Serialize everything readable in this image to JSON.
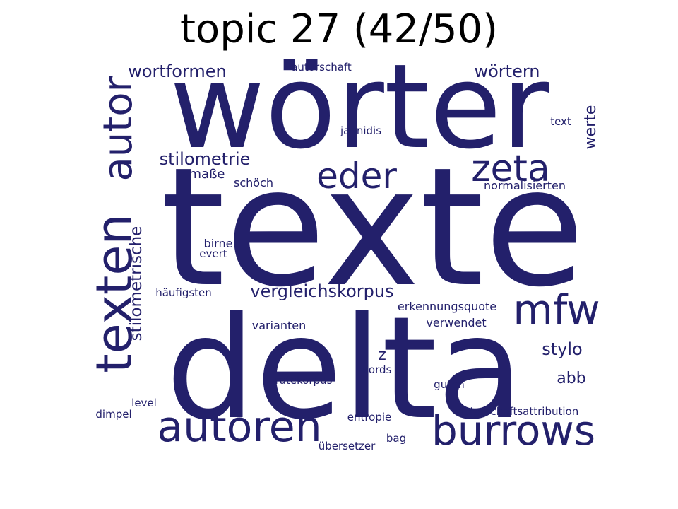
{
  "chart_data": {
    "type": "wordcloud",
    "title": "topic 27 (42/50)",
    "color": "#23206b",
    "words": [
      {
        "text": "texte",
        "weight": 1.0
      },
      {
        "text": "delta",
        "weight": 0.86
      },
      {
        "text": "wörter",
        "weight": 0.72
      },
      {
        "text": "texten",
        "weight": 0.45
      },
      {
        "text": "autoren",
        "weight": 0.33
      },
      {
        "text": "burrows",
        "weight": 0.31
      },
      {
        "text": "autor",
        "weight": 0.3
      },
      {
        "text": "mfw",
        "weight": 0.3
      },
      {
        "text": "zeta",
        "weight": 0.25
      },
      {
        "text": "eder",
        "weight": 0.25
      },
      {
        "text": "vergleichskorpus",
        "weight": 0.13
      },
      {
        "text": "stilometrie",
        "weight": 0.13
      },
      {
        "text": "wortformen",
        "weight": 0.12
      },
      {
        "text": "wörtern",
        "weight": 0.12
      },
      {
        "text": "stilometrische",
        "weight": 0.12
      },
      {
        "text": "stylo",
        "weight": 0.12
      },
      {
        "text": "werte",
        "weight": 0.11
      },
      {
        "text": "abb",
        "weight": 0.11
      },
      {
        "text": "z",
        "weight": 0.11
      },
      {
        "text": "maße",
        "weight": 0.09
      },
      {
        "text": "erkennungsquote",
        "weight": 0.08
      },
      {
        "text": "varianten",
        "weight": 0.08
      },
      {
        "text": "verwendet",
        "weight": 0.08
      },
      {
        "text": "schöch",
        "weight": 0.08
      },
      {
        "text": "normalisierten",
        "weight": 0.08
      },
      {
        "text": "birne",
        "weight": 0.08
      },
      {
        "text": "autorschaftsattribution",
        "weight": 0.07
      },
      {
        "text": "autorschaft",
        "weight": 0.07
      },
      {
        "text": "jannidis",
        "weight": 0.07
      },
      {
        "text": "text",
        "weight": 0.07
      },
      {
        "text": "evert",
        "weight": 0.07
      },
      {
        "text": "häufigsten",
        "weight": 0.07
      },
      {
        "text": "words",
        "weight": 0.07
      },
      {
        "text": "ratekorpus",
        "weight": 0.07
      },
      {
        "text": "guten",
        "weight": 0.07
      },
      {
        "text": "level",
        "weight": 0.07
      },
      {
        "text": "dimpel",
        "weight": 0.07
      },
      {
        "text": "entropie",
        "weight": 0.07
      },
      {
        "text": "bag",
        "weight": 0.07
      },
      {
        "text": "übersetzer",
        "weight": 0.07
      }
    ]
  }
}
